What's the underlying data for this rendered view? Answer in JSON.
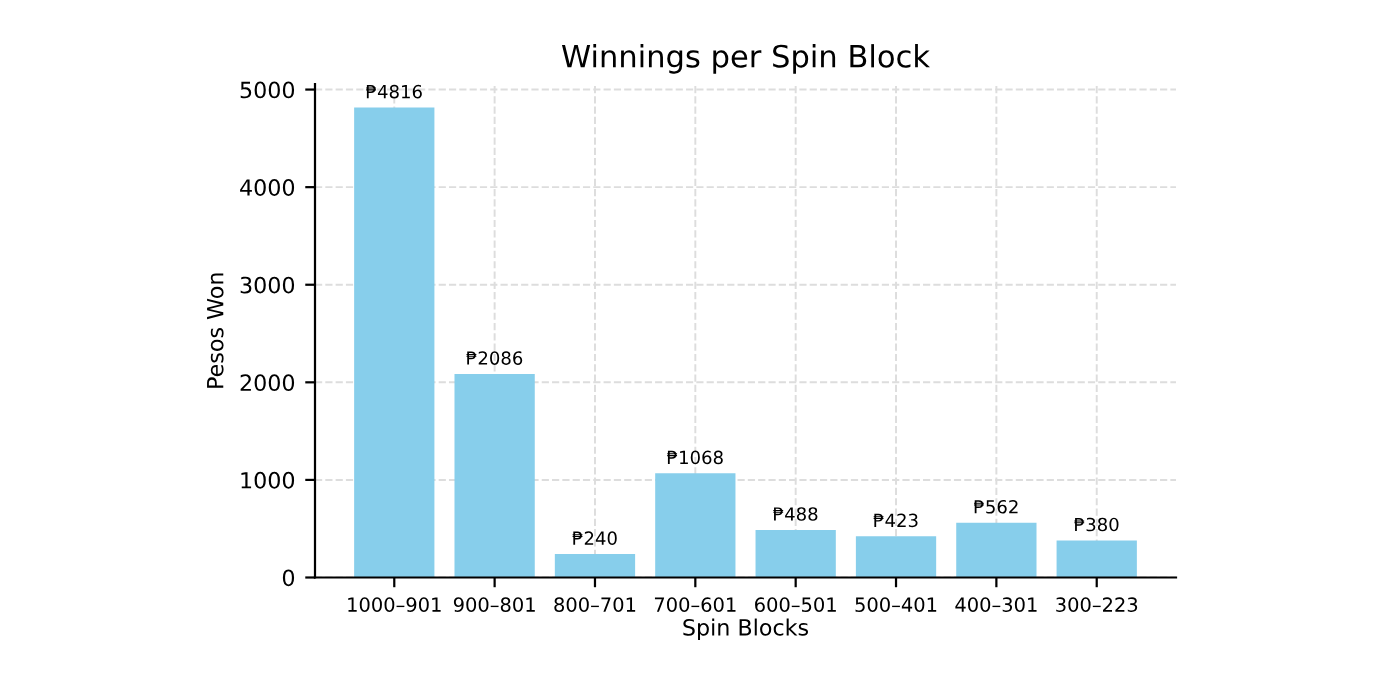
{
  "chart_data": {
    "type": "bar",
    "title": "Winnings per Spin Block",
    "xlabel": "Spin Blocks",
    "ylabel": "Pesos Won",
    "categories": [
      "1000–901",
      "900–801",
      "800–701",
      "700–601",
      "600–501",
      "500–401",
      "400–301",
      "300–223"
    ],
    "values": [
      4816,
      2086,
      240,
      1068,
      488,
      423,
      562,
      380
    ],
    "value_labels": [
      "₱4816",
      "₱2086",
      "₱240",
      "₱1068",
      "₱488",
      "₱423",
      "₱562",
      "₱380"
    ],
    "color": "#87ceeb",
    "ylim": [
      0,
      5057
    ],
    "yticks": [
      0,
      1000,
      2000,
      3000,
      4000,
      5000
    ],
    "grid": true
  }
}
